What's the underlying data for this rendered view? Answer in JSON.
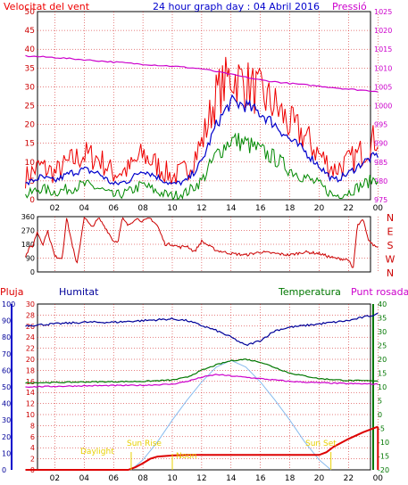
{
  "colors": {
    "wind": "#ee0000",
    "gust": "#ee0000",
    "avg": "#0000cc",
    "low": "#008800",
    "pressure": "#cc00cc",
    "direction": "#cc0000",
    "rain": "#dd0000",
    "humidity": "#000099",
    "temperature": "#007700",
    "dewpoint": "#cc00cc",
    "solar": "#88bbee",
    "annotation": "#e8d000",
    "grid": "#cc0000"
  },
  "chart_data": [
    {
      "type": "line",
      "name": "wind-pressure",
      "title": "24 hour graph day : 04 Abril 2016",
      "left_axis_title": "Velocitat del vent",
      "right_axis_title": "Pressió",
      "x_ticks": [
        "02",
        "04",
        "06",
        "08",
        "10",
        "12",
        "14",
        "16",
        "18",
        "20",
        "22",
        "00"
      ],
      "y_left_ticks": [
        "0",
        "5",
        "10",
        "15",
        "20",
        "25",
        "30",
        "35",
        "40",
        "45",
        "50"
      ],
      "y_left_range": [
        0,
        50
      ],
      "y_right_ticks": [
        "975",
        "980",
        "985",
        "990",
        "995",
        "1000",
        "1005",
        "1010",
        "1015",
        "1020",
        "1025"
      ],
      "y_right_range": [
        975,
        1025
      ],
      "series": [
        {
          "key": "pressure",
          "x": [
            0,
            2,
            4,
            6,
            8,
            10,
            12,
            14,
            16,
            18,
            20,
            22,
            24
          ],
          "values": [
            1013.2,
            1012.8,
            1012.2,
            1011.6,
            1011.0,
            1010.5,
            1009.8,
            1008.3,
            1006.8,
            1005.9,
            1005.2,
            1004.4,
            1003.8
          ]
        },
        {
          "key": "gust",
          "x": [
            0,
            1,
            2,
            3,
            4,
            5,
            6,
            7,
            8,
            9,
            10,
            11,
            12,
            13,
            14,
            15,
            16,
            17,
            18,
            19,
            20,
            21,
            22,
            23,
            24
          ],
          "values": [
            6,
            9,
            7,
            10,
            12,
            11,
            7,
            8,
            12,
            9,
            6,
            8,
            15,
            28,
            33,
            31,
            28,
            25,
            20,
            17,
            12,
            8,
            10,
            13,
            17
          ]
        },
        {
          "key": "avg",
          "x": [
            0,
            1,
            2,
            3,
            4,
            5,
            6,
            7,
            8,
            9,
            10,
            11,
            12,
            13,
            14,
            15,
            16,
            17,
            18,
            19,
            20,
            21,
            22,
            23,
            24
          ],
          "values": [
            4,
            6,
            5,
            7,
            8,
            7,
            4,
            5,
            8,
            6,
            4,
            5,
            10,
            20,
            26,
            25,
            23,
            20,
            16,
            13,
            9,
            5,
            7,
            10,
            12
          ]
        },
        {
          "key": "low",
          "x": [
            0,
            1,
            2,
            3,
            4,
            5,
            6,
            7,
            8,
            9,
            10,
            11,
            12,
            13,
            14,
            15,
            16,
            17,
            18,
            19,
            20,
            21,
            22,
            23,
            24
          ],
          "values": [
            1,
            3,
            2,
            3,
            4,
            3,
            1,
            2,
            4,
            2,
            1,
            2,
            5,
            12,
            16,
            15,
            13,
            11,
            8,
            6,
            4,
            1,
            2,
            4,
            6
          ]
        }
      ]
    },
    {
      "type": "line",
      "name": "wind-direction",
      "y_left_ticks": [
        "0",
        "90",
        "180",
        "270",
        "360"
      ],
      "y_left_range": [
        0,
        360
      ],
      "y_right_labels": [
        "N",
        "W",
        "S",
        "E",
        "N"
      ],
      "series": [
        {
          "key": "direction",
          "x": [
            0,
            0.3,
            0.5,
            0.8,
            1.2,
            1.5,
            2,
            2.5,
            2.8,
            3.5,
            4,
            4.5,
            5,
            5.5,
            6,
            6.3,
            6.6,
            7,
            7.5,
            8,
            8.5,
            9,
            9.5,
            10,
            10.5,
            11,
            11.5,
            12,
            13,
            14,
            15,
            16,
            17,
            18,
            19,
            20,
            21,
            22,
            22.3,
            22.6,
            23,
            23.3,
            23.6,
            24
          ],
          "values": [
            100,
            160,
            170,
            260,
            180,
            270,
            100,
            90,
            350,
            40,
            360,
            290,
            350,
            280,
            200,
            200,
            350,
            300,
            350,
            330,
            350,
            300,
            180,
            180,
            160,
            170,
            130,
            200,
            140,
            120,
            110,
            130,
            120,
            110,
            130,
            120,
            90,
            80,
            10,
            300,
            340,
            220,
            180,
            160
          ]
        }
      ]
    },
    {
      "type": "line",
      "name": "rain-humidity-temperature",
      "series_labels": {
        "rain": "Pluja",
        "humidity": "Humitat",
        "temperature": "Temperatura",
        "dewpoint": "Punt rosada"
      },
      "y_rain_ticks": [
        "0",
        "2",
        "4",
        "6",
        "8",
        "10",
        "12",
        "14",
        "16",
        "18",
        "20",
        "22",
        "24",
        "26",
        "28",
        "30"
      ],
      "y_rain_range": [
        0,
        30
      ],
      "y_humidity_ticks": [
        "0",
        "10",
        "20",
        "30",
        "40",
        "50",
        "60",
        "70",
        "80",
        "90",
        "100"
      ],
      "y_humidity_range": [
        0,
        100
      ],
      "y_temp_ticks": [
        "-20",
        "-15",
        "-10",
        "-5",
        "0",
        "5",
        "10",
        "15",
        "20",
        "25",
        "30",
        "35",
        "40"
      ],
      "y_temp_range": [
        -20,
        40
      ],
      "annotations": {
        "daylight": "Daylight",
        "sunrise": "Sun Rise",
        "sunset": "Sun Set",
        "solar_noon": "Noon"
      },
      "series": [
        {
          "key": "humidity",
          "x": [
            0,
            2,
            4,
            6,
            8,
            10,
            11,
            12,
            13,
            14,
            15,
            16,
            17,
            18,
            20,
            22,
            23,
            24
          ],
          "values": [
            87,
            88,
            89,
            89,
            90,
            91,
            90,
            87,
            84,
            80,
            75,
            78,
            84,
            86,
            88,
            90,
            92,
            94
          ]
        },
        {
          "key": "temperature",
          "x": [
            0,
            2,
            4,
            6,
            8,
            10,
            11,
            12,
            13,
            14,
            15,
            16,
            17,
            18,
            20,
            22,
            24
          ],
          "values": [
            11.5,
            11.6,
            11.8,
            11.9,
            12.0,
            12.5,
            13.5,
            16.0,
            18.0,
            19.5,
            20.0,
            19.0,
            17.0,
            15.0,
            13.0,
            12.3,
            12.2
          ]
        },
        {
          "key": "dewpoint",
          "x": [
            0,
            2,
            4,
            6,
            8,
            10,
            11,
            12,
            13,
            14,
            15,
            16,
            17,
            18,
            20,
            22,
            24
          ],
          "values": [
            10.0,
            10.2,
            10.4,
            10.5,
            10.6,
            11.0,
            12.0,
            13.5,
            14.5,
            14.0,
            13.5,
            13.0,
            12.5,
            12.0,
            11.5,
            11.2,
            11.0
          ]
        },
        {
          "key": "rain",
          "x": [
            0,
            6,
            7,
            7.5,
            8,
            8.5,
            9,
            10,
            11,
            12,
            14,
            16,
            18,
            20,
            20.5,
            21,
            22,
            23,
            24
          ],
          "values": [
            0,
            0,
            0,
            0.5,
            1.2,
            2.0,
            2.4,
            2.6,
            2.7,
            2.7,
            2.7,
            2.7,
            2.7,
            2.7,
            3.2,
            4.2,
            5.6,
            6.8,
            7.8
          ]
        },
        {
          "key": "solar",
          "x": [
            7.2,
            8,
            9,
            10,
            11,
            12,
            13,
            14,
            15,
            16,
            17,
            18,
            19,
            20,
            20.8
          ],
          "values": [
            0,
            6,
            17,
            30,
            42,
            53,
            62,
            66,
            62,
            53,
            42,
            30,
            17,
            6,
            0
          ]
        }
      ]
    }
  ]
}
